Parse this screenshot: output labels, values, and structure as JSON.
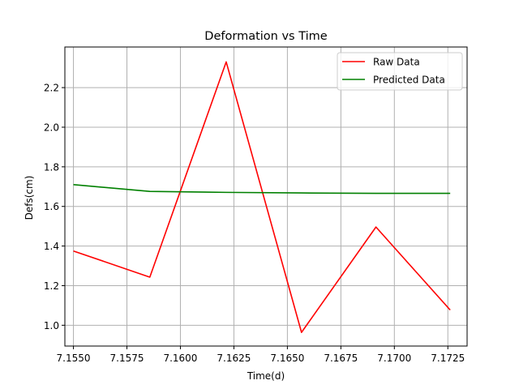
{
  "chart_data": {
    "type": "line",
    "title": "Deformation vs Time",
    "xlabel": "Time(d)",
    "ylabel": "Defs(cm)",
    "xlim": [
      7.1546,
      7.1734
    ],
    "ylim": [
      0.895,
      2.405
    ],
    "x_ticks": [
      7.155,
      7.1575,
      7.16,
      7.1625,
      7.165,
      7.1675,
      7.17,
      7.1725
    ],
    "x_tick_labels": [
      "7.1550",
      "7.1575",
      "7.1600",
      "7.1625",
      "7.1650",
      "7.1675",
      "7.1700",
      "7.1725"
    ],
    "y_ticks": [
      1.0,
      1.2,
      1.4,
      1.6,
      1.8,
      2.0,
      2.2
    ],
    "y_tick_labels": [
      "1.0",
      "1.2",
      "1.4",
      "1.6",
      "1.8",
      "2.0",
      "2.2"
    ],
    "grid": true,
    "legend_position": "top-right",
    "x": [
      7.155,
      7.15857,
      7.16214,
      7.16566,
      7.16914,
      7.17261
    ],
    "series": [
      {
        "name": "Raw Data",
        "color": "#ff0000",
        "values": [
          1.375,
          1.243,
          2.33,
          0.964,
          1.496,
          1.077
        ]
      },
      {
        "name": "Predicted Data",
        "color": "#008000",
        "values": [
          1.71,
          1.676,
          1.671,
          1.668,
          1.666,
          1.666
        ]
      }
    ]
  }
}
